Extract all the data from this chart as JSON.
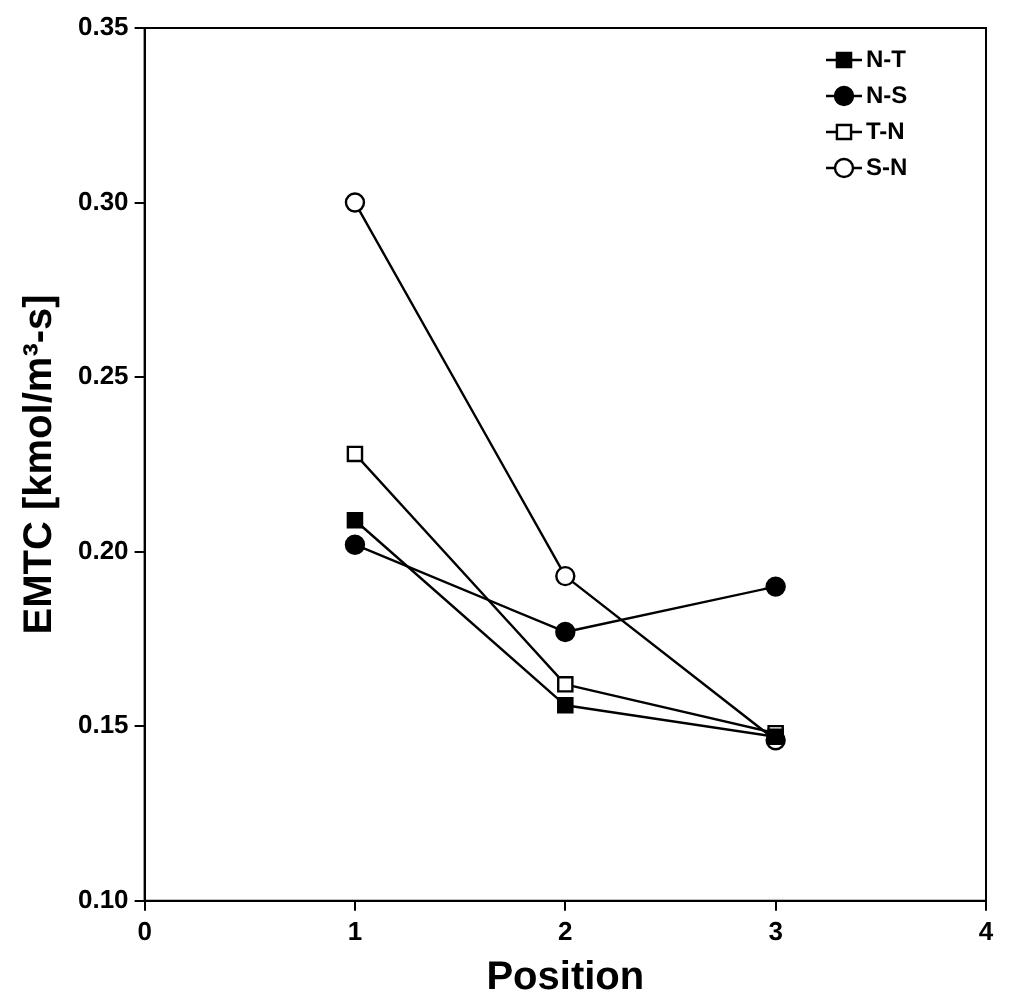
{
  "chart_data": {
    "type": "line",
    "xlabel": "Position",
    "ylabel": "EMTC [kmol/m³-s]",
    "xlim": [
      0,
      4
    ],
    "xticks": [
      0,
      1,
      2,
      3,
      4
    ],
    "ylim": [
      0.1,
      0.35
    ],
    "yticks": [
      {
        "value": 0.1,
        "label": "0.10"
      },
      0.15,
      {
        "value": 0.2,
        "label": "0.20"
      },
      0.25,
      {
        "value": 0.3,
        "label": "0.30"
      },
      0.35
    ],
    "x": [
      1,
      2,
      3
    ],
    "grid": false,
    "legend": "top right",
    "line_style": "solid",
    "series": [
      {
        "name": "N-T",
        "color": "#000000",
        "marker": "square",
        "values": [
          0.209,
          0.156,
          0.147
        ]
      },
      {
        "name": "N-S",
        "color": "#000000",
        "marker": "circle",
        "values": [
          0.202,
          0.177,
          0.19
        ]
      },
      {
        "name": "T-N",
        "color": "#ffffff",
        "marker": "square",
        "values": [
          0.228,
          0.162,
          0.148
        ]
      },
      {
        "name": "S-N",
        "color": "#ffffff",
        "marker": "circle",
        "values": [
          0.3,
          0.193,
          0.146
        ]
      }
    ]
  }
}
